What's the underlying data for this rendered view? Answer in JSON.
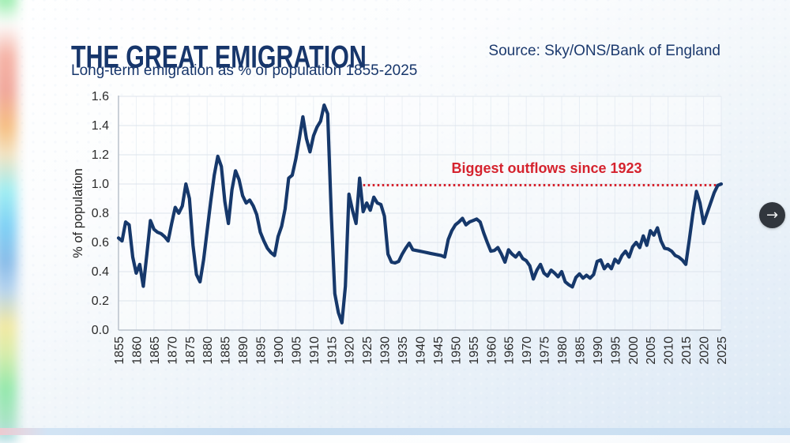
{
  "page": {
    "title": "THE GREAT EMIGRATION",
    "subtitle": "Long-term emigration as % of population 1855-2025",
    "source": "Source: Sky/ONS/Bank of England"
  },
  "nav": {
    "next_arrow": "→"
  },
  "colors": {
    "title_navy": "#17366b",
    "line_navy": "#16386b",
    "annotation_red": "#d5232e",
    "tick_text": "#2b2b2b",
    "gridline": "#dde4ec",
    "axis_line": "#b9c1cb",
    "button_dark": "#31363d"
  },
  "chart_data": {
    "type": "line",
    "title": "Long-term emigration as % of population 1855-2025",
    "xlabel": "",
    "ylabel": "% of population",
    "x_range": [
      1855,
      2025
    ],
    "ylim": [
      0.0,
      1.6
    ],
    "grid": true,
    "legend": false,
    "x_ticks": [
      1855,
      1860,
      1865,
      1870,
      1875,
      1880,
      1885,
      1890,
      1895,
      1900,
      1905,
      1910,
      1915,
      1920,
      1925,
      1930,
      1935,
      1940,
      1945,
      1950,
      1955,
      1960,
      1965,
      1970,
      1975,
      1980,
      1985,
      1990,
      1995,
      2000,
      2005,
      2010,
      2015,
      2020,
      2025
    ],
    "y_ticks": [
      "0.0",
      "0.2",
      "0.4",
      "0.6",
      "0.8",
      "1.0",
      "1.2",
      "1.4",
      "1.6"
    ],
    "annotation": {
      "text": "Biggest outflows since 1923",
      "line_y_value": 1.0,
      "line_x_start": 1924,
      "line_x_end": 2025,
      "style": "red dotted horizontal line"
    },
    "series": [
      {
        "name": "Long-term emigration as % of population",
        "x_start": 1855,
        "x_step": 1,
        "values": [
          0.63,
          0.61,
          0.74,
          0.72,
          0.5,
          0.39,
          0.45,
          0.3,
          0.52,
          0.75,
          0.69,
          0.67,
          0.66,
          0.64,
          0.61,
          0.73,
          0.84,
          0.8,
          0.85,
          1.0,
          0.9,
          0.58,
          0.38,
          0.33,
          0.48,
          0.68,
          0.88,
          1.06,
          1.19,
          1.12,
          0.88,
          0.73,
          0.96,
          1.09,
          1.03,
          0.92,
          0.87,
          0.89,
          0.85,
          0.79,
          0.67,
          0.61,
          0.56,
          0.53,
          0.51,
          0.64,
          0.71,
          0.83,
          1.04,
          1.06,
          1.17,
          1.31,
          1.46,
          1.31,
          1.22,
          1.33,
          1.39,
          1.43,
          1.54,
          1.48,
          0.8,
          0.25,
          0.12,
          0.05,
          0.3,
          0.93,
          0.82,
          0.73,
          1.04,
          0.81,
          0.87,
          0.82,
          0.91,
          0.87,
          0.86,
          0.78,
          0.52,
          0.465,
          0.46,
          0.47,
          0.52,
          0.56,
          0.595,
          0.55,
          0.545,
          0.54,
          0.535,
          0.53,
          0.525,
          0.52,
          0.515,
          0.51,
          0.5,
          0.62,
          0.68,
          0.72,
          0.74,
          0.765,
          0.72,
          0.74,
          0.75,
          0.76,
          0.74,
          0.665,
          0.6,
          0.54,
          0.545,
          0.565,
          0.52,
          0.465,
          0.55,
          0.52,
          0.5,
          0.53,
          0.49,
          0.475,
          0.44,
          0.35,
          0.41,
          0.45,
          0.39,
          0.37,
          0.41,
          0.39,
          0.365,
          0.4,
          0.33,
          0.31,
          0.295,
          0.36,
          0.385,
          0.355,
          0.375,
          0.355,
          0.38,
          0.47,
          0.48,
          0.42,
          0.45,
          0.42,
          0.485,
          0.46,
          0.51,
          0.54,
          0.5,
          0.57,
          0.6,
          0.565,
          0.645,
          0.58,
          0.68,
          0.65,
          0.7,
          0.61,
          0.56,
          0.555,
          0.54,
          0.51,
          0.5,
          0.48,
          0.45,
          0.62,
          0.8,
          0.95,
          0.87,
          0.73,
          0.8,
          0.87,
          0.94,
          0.99,
          1.0
        ]
      }
    ]
  }
}
